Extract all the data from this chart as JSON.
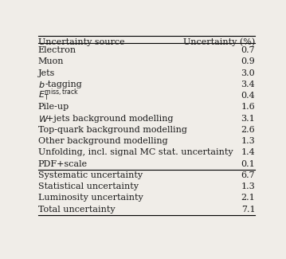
{
  "header_left": "Uncertainty source",
  "header_right": "Uncertainty (%)",
  "rows": [
    {
      "source": "Electron",
      "value": "0.7"
    },
    {
      "source": "Muon",
      "value": "0.9"
    },
    {
      "source": "Jets",
      "value": "3.0"
    },
    {
      "source": "b-tagging",
      "value": "3.4"
    },
    {
      "source": "E_T^{miss,track}",
      "value": "0.4"
    },
    {
      "source": "Pile-up",
      "value": "1.6"
    },
    {
      "source": "W+jets background modelling",
      "value": "3.1"
    },
    {
      "source": "Top-quark background modelling",
      "value": "2.6"
    },
    {
      "source": "Other background modelling",
      "value": "1.3"
    },
    {
      "source": "Unfolding, incl. signal MC stat. uncertainty",
      "value": "1.4"
    },
    {
      "source": "PDF+scale",
      "value": "0.1"
    },
    {
      "source": "Systematic uncertainty",
      "value": "6.7"
    },
    {
      "source": "Statistical uncertainty",
      "value": "1.3"
    },
    {
      "source": "Luminosity uncertainty",
      "value": "2.1"
    },
    {
      "source": "Total uncertainty",
      "value": "7.1"
    }
  ],
  "separator_after_indices": [
    10
  ],
  "bg_color": "#f0ede8",
  "text_color": "#1a1a1a",
  "font_size": 8.0,
  "header_font_size": 8.0
}
